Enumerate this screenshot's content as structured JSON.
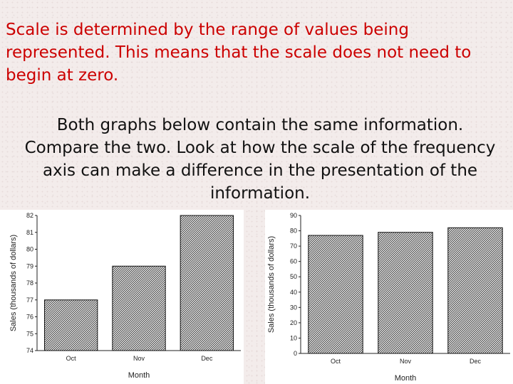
{
  "intro_text": "Scale is determined by the range of values being represented. This means that the scale does not need to begin at zero.",
  "compare_text": "Both graphs below contain the same information. Compare the two. Look at how the scale of the frequency axis can make a difference in the presentation of the information.",
  "colors": {
    "intro_text": "#cc0000",
    "bar_hatch": "#222222",
    "background": "#f3eceb"
  },
  "chart_data": [
    {
      "type": "bar",
      "categories": [
        "Oct",
        "Nov",
        "Dec"
      ],
      "values": [
        77,
        79,
        82
      ],
      "xlabel": "Month",
      "ylabel": "Sales (thousands of dollars)",
      "ylim": [
        74,
        82
      ],
      "yticks": [
        "74",
        "75",
        "76",
        "77",
        "78",
        "79",
        "80",
        "81",
        "82"
      ],
      "grid": false,
      "bar_fill": "diagonal-hatch"
    },
    {
      "type": "bar",
      "categories": [
        "Oct",
        "Nov",
        "Dec"
      ],
      "values": [
        77,
        79,
        82
      ],
      "xlabel": "Month",
      "ylabel": "Sales (thousands of dollars)",
      "ylim": [
        0,
        90
      ],
      "yticks": [
        "0",
        "10",
        "20",
        "30",
        "40",
        "50",
        "60",
        "70",
        "80",
        "90"
      ],
      "grid": false,
      "bar_fill": "diagonal-hatch"
    }
  ]
}
